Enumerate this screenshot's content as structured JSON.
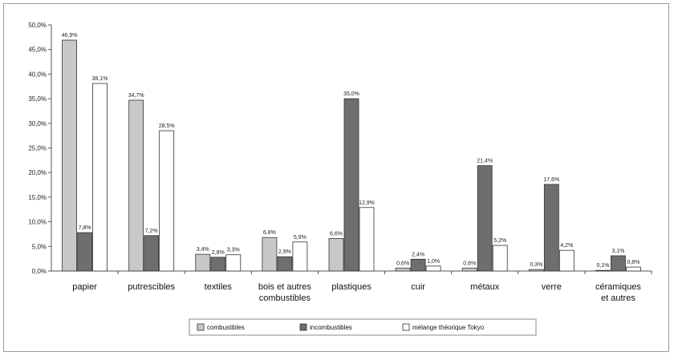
{
  "chart_data": {
    "type": "bar",
    "title": "",
    "xlabel": "",
    "ylabel": "",
    "ylim": [
      0,
      50
    ],
    "yticks": [
      "0,0%",
      "5,0%",
      "10,0%",
      "15,0%",
      "20,0%",
      "25,0%",
      "30,0%",
      "35,0%",
      "40,0%",
      "45,0%",
      "50,0%"
    ],
    "categories": [
      [
        "papier"
      ],
      [
        "putrescibles"
      ],
      [
        "textiles"
      ],
      [
        "bois et autres",
        "combustibles"
      ],
      [
        "plastiques"
      ],
      [
        "cuir"
      ],
      [
        "métaux"
      ],
      [
        "verre"
      ],
      [
        "céramiques",
        "et autres"
      ]
    ],
    "series": [
      {
        "name": "combustibles",
        "color": "#c8c8c8",
        "values": [
          46.9,
          34.7,
          3.4,
          6.8,
          6.6,
          0.6,
          0.6,
          0.3,
          0.1
        ],
        "labels": [
          "46,9%",
          "34,7%",
          "3,4%",
          "6,8%",
          "6,6%",
          "0,6%",
          "0,6%",
          "0,3%",
          "0,1%"
        ]
      },
      {
        "name": "incombustibles",
        "color": "#6e6e6e",
        "values": [
          7.8,
          7.2,
          2.8,
          2.9,
          35.0,
          2.4,
          21.4,
          17.6,
          3.1
        ],
        "labels": [
          "7,8%",
          "7,2%",
          "2,8%",
          "2,9%",
          "35,0%",
          "2,4%",
          "21,4%",
          "17,6%",
          "3,1%"
        ]
      },
      {
        "name": "mélange théorique Tokyo",
        "color": "#ffffff",
        "values": [
          38.1,
          28.5,
          3.3,
          5.9,
          12.9,
          1.0,
          5.2,
          4.2,
          0.8
        ],
        "labels": [
          "38,1%",
          "28,5%",
          "3,3%",
          "5,9%",
          "12,9%",
          "1,0%",
          "5,2%",
          "4,2%",
          "0,8%"
        ]
      }
    ],
    "legend_position": "bottom",
    "grid": false
  }
}
